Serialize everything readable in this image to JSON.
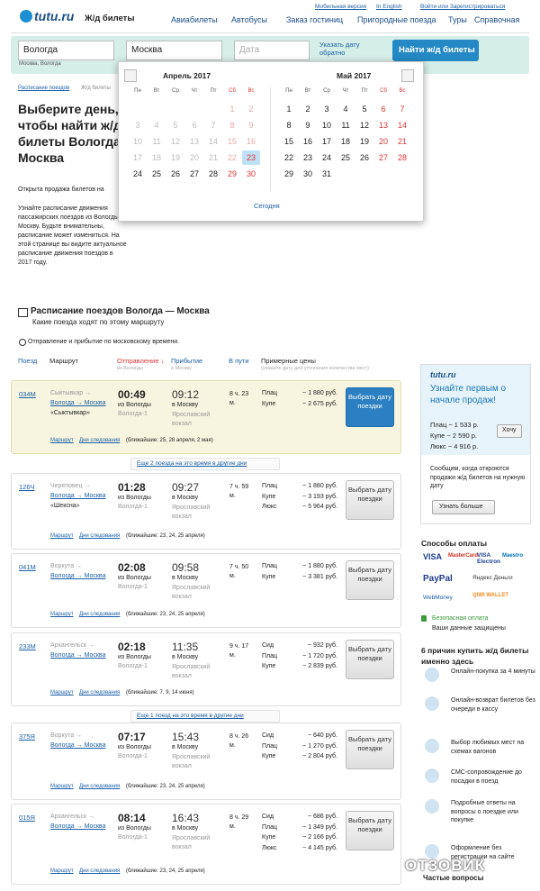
{
  "header": {
    "logo": "tutu.ru",
    "section": "Ж/д билеты",
    "top_links": [
      "Мобильная версия",
      "In English",
      "Войти или Зарегистрироваться"
    ],
    "nav": [
      "Авиабилеты",
      "Автобусы",
      "Заказ гостиниц",
      "Пригородные поезда",
      "Туры",
      "Справочная"
    ]
  },
  "search": {
    "from": "Вологда",
    "from_hint": "Москва, Вологда",
    "to": "Москва",
    "date": "Дата",
    "return_date": "Указать дату обратно",
    "button": "Найти ж/д билеты"
  },
  "calendar": {
    "weekdays": [
      "Пн",
      "Вт",
      "Ср",
      "Чт",
      "Пт",
      "Сб",
      "Вс"
    ],
    "months": [
      {
        "title": "Апрель 2017",
        "weeks": [
          [
            null,
            null,
            null,
            null,
            null,
            1,
            2
          ],
          [
            3,
            4,
            5,
            6,
            7,
            8,
            9
          ],
          [
            10,
            11,
            12,
            13,
            14,
            15,
            16
          ],
          [
            17,
            18,
            19,
            20,
            21,
            22,
            23
          ],
          [
            24,
            25,
            26,
            27,
            28,
            29,
            30
          ]
        ]
      },
      {
        "title": "Май 2017",
        "weeks": [
          [
            1,
            2,
            3,
            4,
            5,
            6,
            7
          ],
          [
            8,
            9,
            10,
            11,
            12,
            13,
            14
          ],
          [
            15,
            16,
            17,
            18,
            19,
            20,
            21
          ],
          [
            22,
            23,
            24,
            25,
            26,
            27,
            28
          ],
          [
            29,
            30,
            31,
            null,
            null,
            null,
            null
          ]
        ]
      }
    ],
    "today": "Сегодня"
  },
  "page": {
    "breadcrumbs": [
      "Расписание поездов",
      "Ж/д билеты"
    ],
    "title": "Выберите день, чтобы найти ж/д билеты Вологда → Москва",
    "sale_note": "Открыта продажа билетов на",
    "intro": "Узнайте расписание движения пассажирских поездов из Вологды в Москву. Будьте внимательны, расписание может измениться. На этой странице вы видите актуальное расписание движения поездов в 2017 году."
  },
  "schedule": {
    "title": "Расписание поездов Вологда — Москва",
    "subtitle": "Какие поезда ходят по этому маршруту",
    "time_note": "Отправление и прибытие по московскому времени.",
    "columns": [
      {
        "label": "Поезд"
      },
      {
        "label": "Маршрут"
      },
      {
        "label": "Отправление ↓",
        "sub": "из Вологды"
      },
      {
        "label": "Прибытие",
        "sub": "в Москву"
      },
      {
        "label": "В пути"
      },
      {
        "label": "Примерные цены",
        "sub": "(укажите дату для уточнения количества мест)"
      }
    ],
    "trains": [
      {
        "number": "034М",
        "origin": "Сыктывкар →",
        "route": "Вологда → Москва",
        "name": "«Сыктывкар»",
        "departure": "00:49",
        "dep_from": "из Вологды",
        "dep_station": "Вологда-1",
        "arrival": "09:12",
        "arr_to": "в Москву",
        "arr_station": "Ярославский вокзал",
        "duration": "8 ч. 23 м.",
        "prices": [
          {
            "class": "Плац",
            "price": "~ 1 880 руб."
          },
          {
            "class": "Купе",
            "price": "~ 2 675 руб."
          }
        ],
        "button": "Выбрать дату поездки",
        "links": [
          "Маршрут",
          "Дни следования"
        ],
        "days": "(ближайшие: 25, 28 апреля, 2 мая)",
        "highlight": true,
        "more": "Еще 2 поезда на это время в другие дни"
      },
      {
        "number": "126Ч",
        "origin": "Череповец →",
        "route": "Вологда → Москва",
        "name": "«Шексна»",
        "departure": "01:28",
        "dep_from": "из Вологды",
        "dep_station": "Вологда-1",
        "arrival": "09:27",
        "arr_to": "в Москву",
        "arr_station": "Ярославский вокзал",
        "duration": "7 ч. 59 м.",
        "prices": [
          {
            "class": "Плац",
            "price": "~ 1 880 руб."
          },
          {
            "class": "Купе",
            "price": "~ 3 193 руб."
          },
          {
            "class": "Люкс",
            "price": "~ 5 964 руб."
          }
        ],
        "button": "Выбрать дату поездки",
        "links": [
          "Маршрут",
          "Дни следования"
        ],
        "days": "(ближайшие: 23, 24, 25 апреля)"
      },
      {
        "number": "041М",
        "origin": "Воркута →",
        "route": "Вологда → Москва",
        "departure": "02:08",
        "dep_from": "из Вологды",
        "dep_station": "Вологда-1",
        "arrival": "09:58",
        "arr_to": "в Москву",
        "arr_station": "Ярославский вокзал",
        "duration": "7 ч. 50 м.",
        "prices": [
          {
            "class": "Плац",
            "price": "~ 1 880 руб."
          },
          {
            "class": "Купе",
            "price": "~ 3 381 руб."
          }
        ],
        "button": "Выбрать дату поездки",
        "links": [
          "Маршрут",
          "Дни следования"
        ],
        "days": "(ближайшие: 23, 24, 25 апреля)"
      },
      {
        "number": "233М",
        "origin": "Архангельск →",
        "route": "Вологда → Москва",
        "departure": "02:18",
        "dep_from": "из Вологды",
        "dep_station": "Вологда-1",
        "arrival": "11:35",
        "arr_to": "в Москву",
        "arr_station": "Ярославский вокзал",
        "duration": "9 ч. 17 м.",
        "prices": [
          {
            "class": "Сид",
            "price": "~ 932 руб."
          },
          {
            "class": "Плац",
            "price": "~ 1 720 руб."
          },
          {
            "class": "Купе",
            "price": "~ 2 839 руб."
          }
        ],
        "button": "Выбрать дату поездки",
        "links": [
          "Маршрут",
          "Дни следования"
        ],
        "days": "(ближайшие: 7, 9, 14 июня)",
        "more": "Еще 1 поезд на это время в другие дни"
      },
      {
        "number": "375Я",
        "origin": "Воркута →",
        "route": "Вологда → Москва",
        "departure": "07:17",
        "dep_from": "из Вологды",
        "dep_station": "Вологда-1",
        "arrival": "15:43",
        "arr_to": "в Москву",
        "arr_station": "Ярославский вокзал",
        "duration": "8 ч. 26 м.",
        "prices": [
          {
            "class": "Сид",
            "price": "~ 640 руб."
          },
          {
            "class": "Плац",
            "price": "~ 1 270 руб."
          },
          {
            "class": "Купе",
            "price": "~ 2 804 руб."
          }
        ],
        "button": "Выбрать дату поездки",
        "links": [
          "Маршрут",
          "Дни следования"
        ],
        "days": "(ближайшие: 23, 24, 25 апреля)"
      },
      {
        "number": "015Я",
        "origin": "Архангельск →",
        "route": "Вологда → Москва",
        "departure": "08:14",
        "dep_from": "из Вологды",
        "dep_station": "Вологда-1",
        "arrival": "16:43",
        "arr_to": "в Москву",
        "arr_station": "Ярославский вокзал",
        "duration": "8 ч. 29 м.",
        "prices": [
          {
            "class": "Сид",
            "price": "~ 686 руб."
          },
          {
            "class": "Плац",
            "price": "~ 1 349 руб."
          },
          {
            "class": "Купе",
            "price": "~ 2 166 руб."
          },
          {
            "class": "Люкс",
            "price": "~ 4 145 руб."
          }
        ],
        "button": "Выбрать дату поездки",
        "links": [
          "Маршрут",
          "Дни следования"
        ],
        "days": "(ближайшие: 23, 24, 25 апреля)"
      }
    ]
  },
  "sidebar": {
    "promo": {
      "logo": "tutu.ru",
      "title": "Узнайте первым о начале продаж!",
      "prices": [
        "Плац ~ 1 533 р.",
        "Купе ~ 2 590 р.",
        "Люкс ~ 4 916 р."
      ],
      "button": "Хочу",
      "text": "Сообщим, когда откроются продажи ж/д билетов на нужную дату",
      "more": "Узнать больше"
    },
    "payment": {
      "title": "Способы оплаты",
      "methods": [
        "VISA",
        "MasterCard",
        "VISA Electron",
        "Maestro",
        "PayPal",
        "Яндекс Деньги",
        "WebMoney",
        "QIWI WALLET"
      ],
      "secure": "Безопасная оплата",
      "secure_note": "Ваши данные защищены"
    },
    "reasons": {
      "title": "6 причин купить ж/д билеты именно здесь",
      "items": [
        "Онлайн-покупка за 4 минуты",
        "Онлайн-возврат билетов без очереди в кассу",
        "Выбор любимых мест на схемах вагонов",
        "СМС-сопровождение до посадки в поезд",
        "Подробные ответы на вопросы о поездке или покупке",
        "Оформление без регистрации на сайте"
      ]
    },
    "faq": "Частые вопросы"
  },
  "watermark": "ОТЗОВИК"
}
